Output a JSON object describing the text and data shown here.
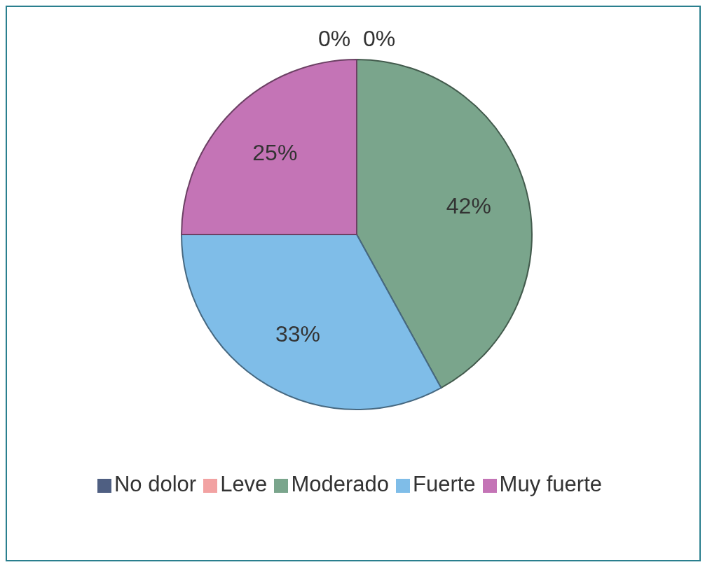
{
  "chart_data": {
    "type": "pie",
    "categories": [
      "No dolor",
      "Leve",
      "Moderado",
      "Fuerte",
      "Muy fuerte"
    ],
    "values": [
      0,
      0,
      42,
      33,
      25
    ],
    "value_labels": [
      "0%",
      "0%",
      "42%",
      "33%",
      "25%"
    ],
    "colors": [
      "#4f5f82",
      "#f2a2a2",
      "#7aa58c",
      "#7fbde8",
      "#c474b6"
    ],
    "legend": "bottom"
  }
}
